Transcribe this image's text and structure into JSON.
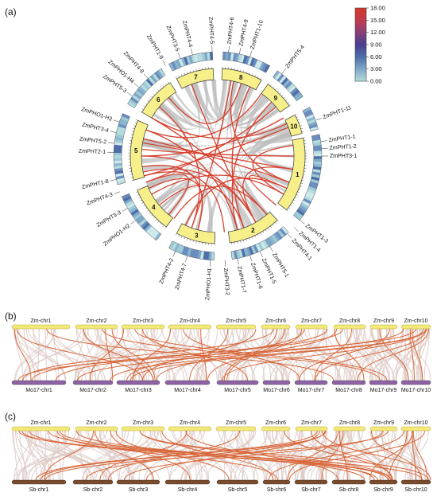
{
  "panels": {
    "a": "(a)",
    "b": "(b)",
    "c": "(c)"
  },
  "colorbar": {
    "ticks": [
      "18.00",
      "15.00",
      "12.00",
      "9.00",
      "6.00",
      "3.00",
      "0.00"
    ],
    "colors": [
      "#d3372a",
      "#c23b4e",
      "#8a3f78",
      "#4a3f8f",
      "#4e6ea8",
      "#7fa8c8",
      "#b4dcdc"
    ]
  },
  "circos": {
    "chromosomes": [
      "1",
      "2",
      "3",
      "4",
      "5",
      "6",
      "7",
      "8",
      "9",
      "10"
    ],
    "genes": [
      "ZmPHT1-1",
      "ZmPHT1-2",
      "ZmPHT3-1",
      "ZmPHT1-3",
      "ZmPHT1-4",
      "ZmPHT4-1",
      "ZmPHT5-1",
      "ZmPHT1-5",
      "ZmPHT1-6",
      "ZmPHT1-7",
      "ZmPHT3-2",
      "ZmPHO1-H1",
      "ZmPHT4-7",
      "ZmPHT4-2",
      "ZmPHO1-H2",
      "ZmPHT3-3",
      "ZmPHT4-3",
      "ZmPHT1-8",
      "ZmPHT2-1",
      "ZmPHT5-2",
      "ZmPHT3-4",
      "ZmPHO1-H3",
      "ZmPHT5-3",
      "ZmPHO1-H4",
      "ZmPHT4-8",
      "ZmPHT1-9",
      "ZmPHT3-5",
      "ZmPHT4-4",
      "ZmPHT4-5",
      "ZmPHT4-6",
      "ZmPHT4-9",
      "ZmPHT1-10",
      "ZmPHT5-4",
      "ZmPHT1-11"
    ]
  },
  "synteny_b": {
    "top": [
      "Zm-chr1",
      "Zm-chr2",
      "Zm-chr3",
      "Zm-chr4",
      "Zm-chr5",
      "Zm-chr6",
      "Zm-chr7",
      "Zm-chr8",
      "Zm-chr9",
      "Zm-chr10"
    ],
    "bottom": [
      "Mo17-chr1",
      "Mo17-chr2",
      "Mo17-chr3",
      "Mo17-chr4",
      "Mo17-chr5",
      "Mo17-chr6",
      "Mo17-chr7",
      "Mo17-chr8",
      "Mo17-chr9",
      "Mo17-chr10"
    ],
    "top_color": "#f3e978",
    "bottom_color": "#8e63a6"
  },
  "synteny_c": {
    "top": [
      "Zm-chr1",
      "Zm-chr2",
      "Zm-chr3",
      "Zm-chr4",
      "Zm-chr5",
      "Zm-chr6",
      "Zm-chr7",
      "Zm-chr8",
      "Zm-chr9",
      "Zm-chr10"
    ],
    "bottom": [
      "Sb-chr1",
      "Sb-chr2",
      "Sb-chr3",
      "Sb-chr4",
      "Sb-chr5",
      "Sb-chr6",
      "Sb-chr7",
      "Sb-chr8",
      "Sb-chr9",
      "Sb-chr10"
    ],
    "top_color": "#f3e978",
    "bottom_color": "#7b4b2a"
  }
}
